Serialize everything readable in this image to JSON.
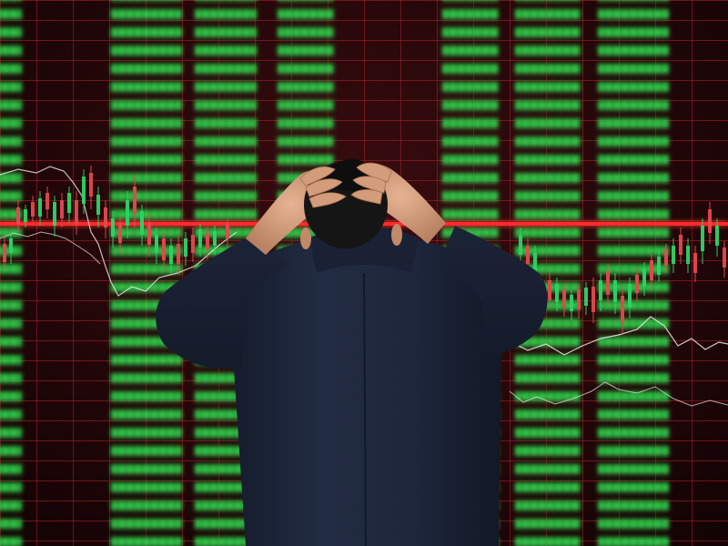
{
  "image": {
    "subject": "stressed-trader",
    "colors": {
      "background": "#240709",
      "grid": "#aa1e28",
      "ticker_green": "#3ceb5a",
      "red_line": "#ff2a2a",
      "suit": "#1d2638",
      "skin": "#d9a684",
      "hair": "#141414"
    }
  }
}
